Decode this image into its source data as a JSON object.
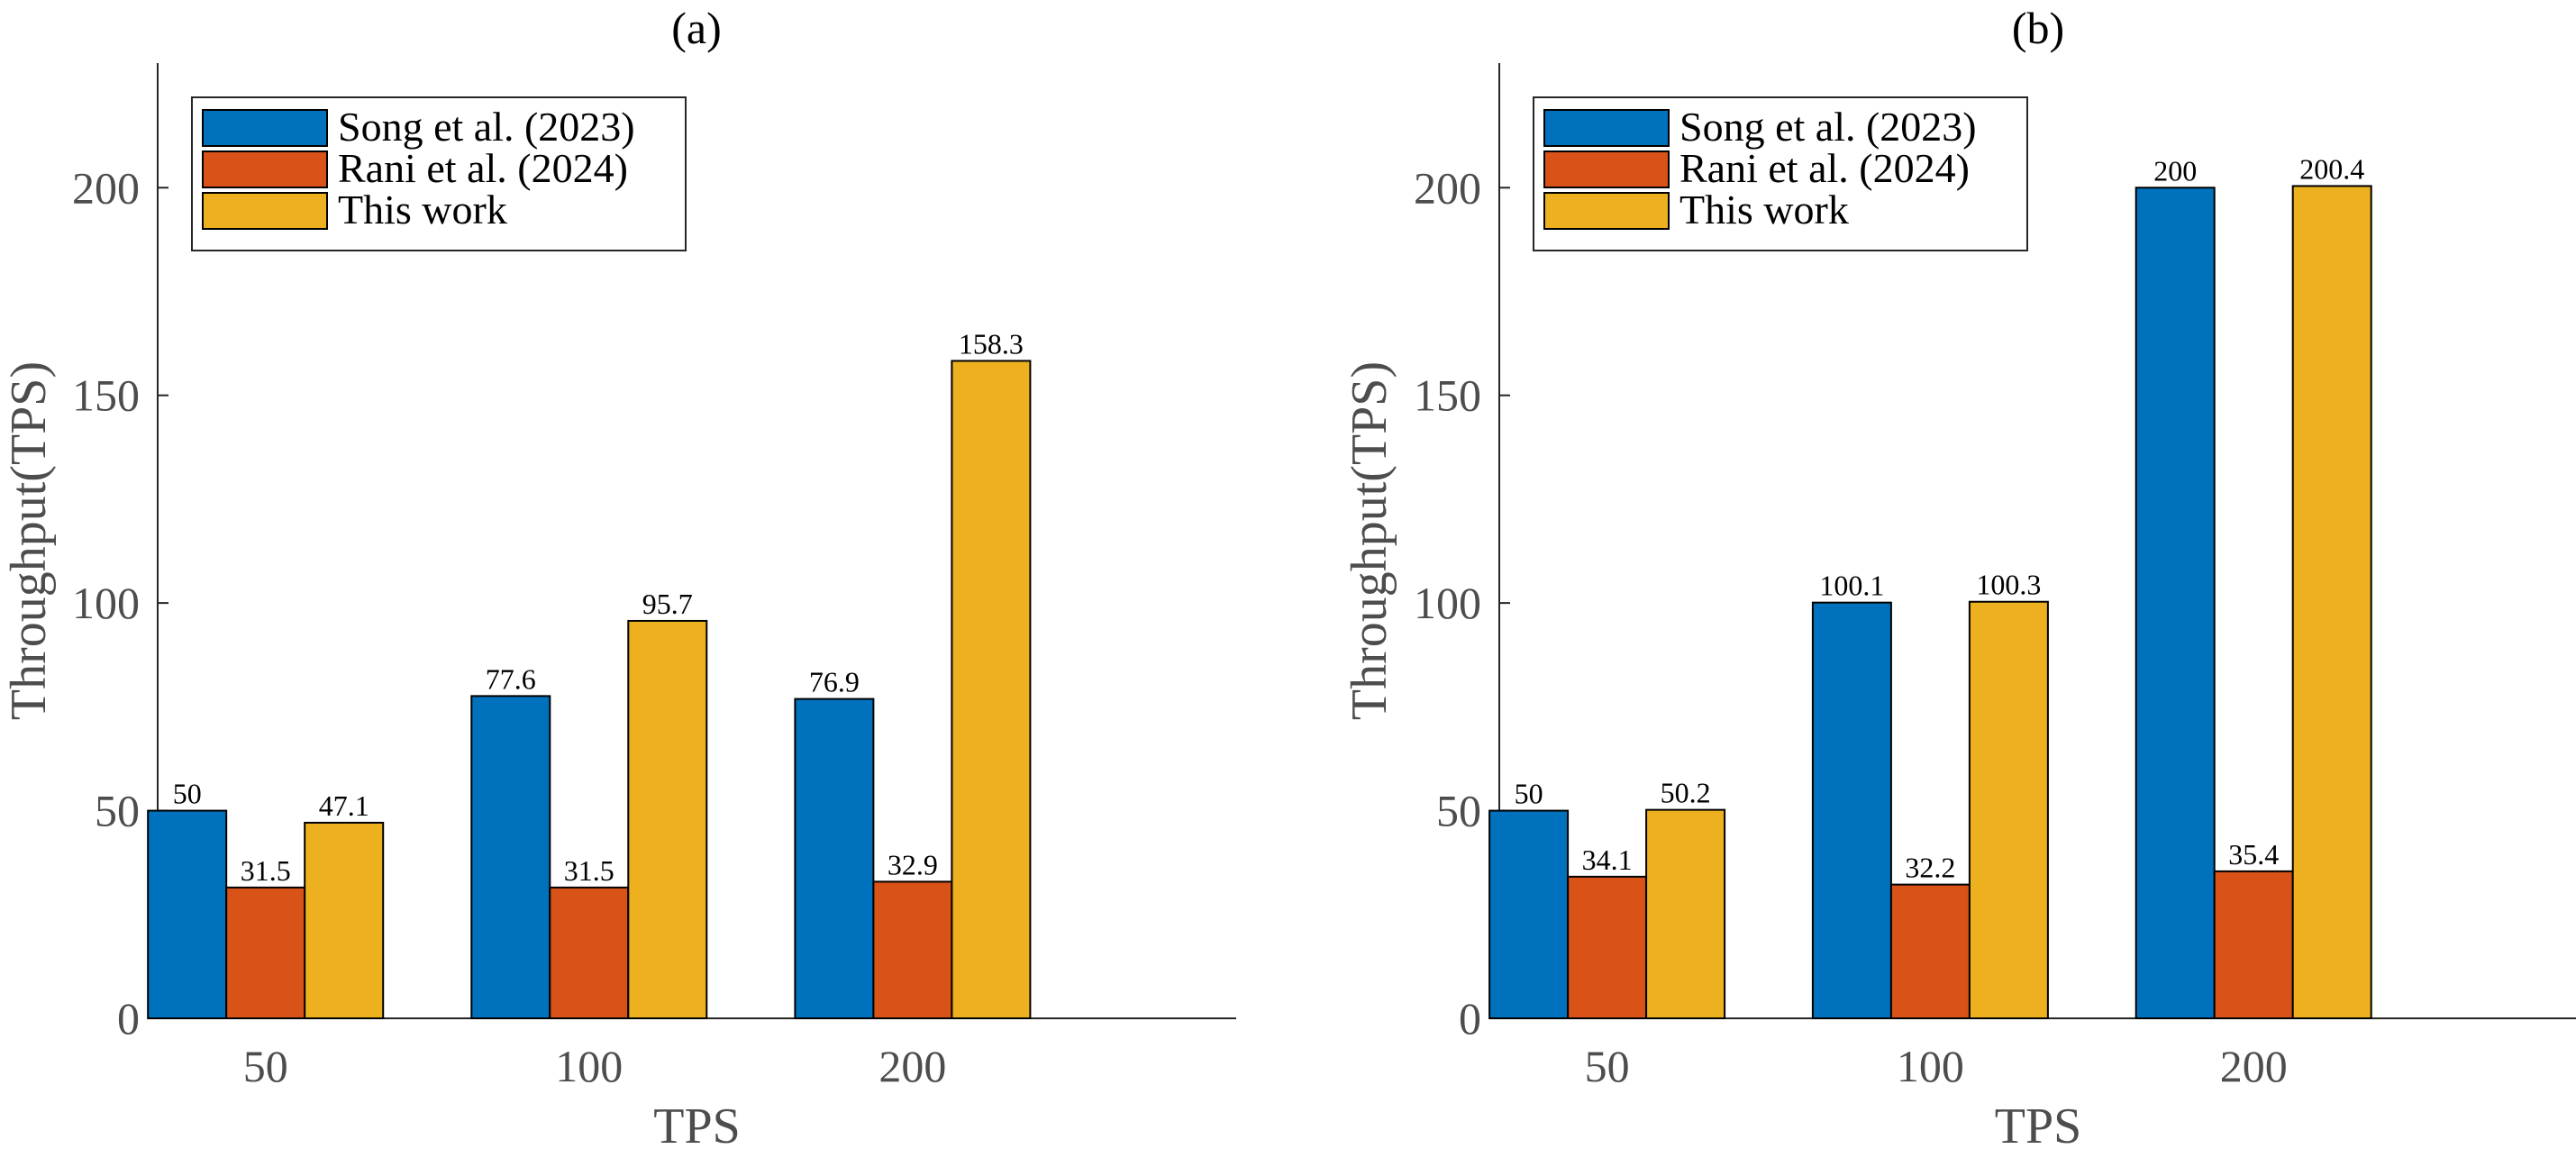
{
  "chart_data": [
    {
      "type": "bar",
      "title": "(a)",
      "xlabel": "TPS",
      "ylabel": "Throughput(TPS)",
      "categories": [
        "50",
        "100",
        "200"
      ],
      "ylim": [
        0,
        230
      ],
      "yticks": [
        0,
        50,
        100,
        150,
        200
      ],
      "legend_position": "top-left",
      "series": [
        {
          "name": "Song et al. (2023)",
          "color": "#0072BD",
          "values": [
            50,
            77.6,
            76.9
          ],
          "labels": [
            "50",
            "77.6",
            "76.9"
          ]
        },
        {
          "name": "Rani et al. (2024)",
          "color": "#D95319",
          "values": [
            31.5,
            31.5,
            32.9
          ],
          "labels": [
            "31.5",
            "31.5",
            "32.9"
          ]
        },
        {
          "name": "This work",
          "color": "#EDB120",
          "values": [
            47.1,
            95.7,
            158.3
          ],
          "labels": [
            "47.1",
            "95.7",
            "158.3"
          ]
        }
      ]
    },
    {
      "type": "bar",
      "title": "(b)",
      "xlabel": "TPS",
      "ylabel": "Throughput(TPS)",
      "categories": [
        "50",
        "100",
        "200"
      ],
      "ylim": [
        0,
        230
      ],
      "yticks": [
        0,
        50,
        100,
        150,
        200
      ],
      "legend_position": "top-left",
      "series": [
        {
          "name": "Song et al. (2023)",
          "color": "#0072BD",
          "values": [
            50,
            100.1,
            200
          ],
          "labels": [
            "50",
            "100.1",
            "200"
          ]
        },
        {
          "name": "Rani et al. (2024)",
          "color": "#D95319",
          "values": [
            34.1,
            32.2,
            35.4
          ],
          "labels": [
            "34.1",
            "32.2",
            "35.4"
          ]
        },
        {
          "name": "This work",
          "color": "#EDB120",
          "values": [
            50.2,
            100.3,
            200.4
          ],
          "labels": [
            "50.2",
            "100.3",
            "200.4"
          ]
        }
      ]
    }
  ]
}
